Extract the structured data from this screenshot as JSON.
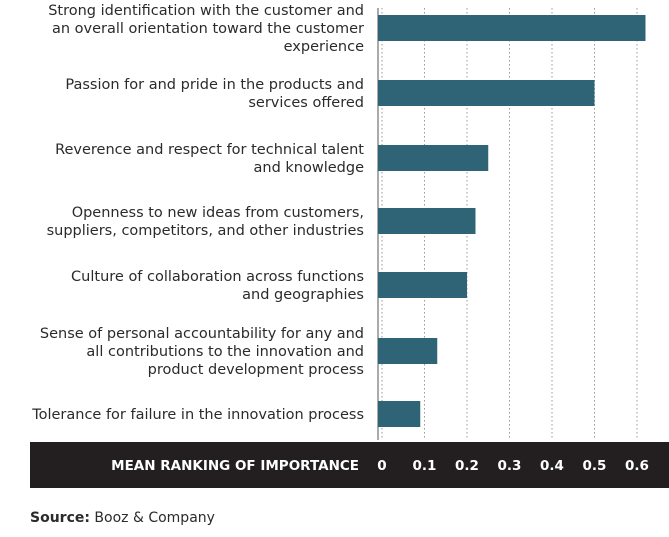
{
  "chart_data": {
    "type": "bar",
    "orientation": "horizontal",
    "categories": [
      [
        "Strong identification with the customer and",
        "an overall orientation toward the customer",
        "experience"
      ],
      [
        "Passion for and pride in the products and",
        "services offered"
      ],
      [
        "Reverence and respect for technical talent",
        "and knowledge"
      ],
      [
        "Openness to new ideas from customers,",
        "suppliers, competitors, and other industries"
      ],
      [
        "Culture of collaboration across functions",
        "and geographies"
      ],
      [
        "Sense of personal accountability for any and",
        "all contributions to the innovation and",
        "product development process"
      ],
      [
        "Tolerance for failure in the innovation process"
      ]
    ],
    "values": [
      0.62,
      0.5,
      0.25,
      0.22,
      0.2,
      0.13,
      0.09
    ],
    "xlabel": "MEAN RANKING OF IMPORTANCE",
    "xlim": [
      0,
      0.6
    ],
    "xticks": [
      "0",
      "0.1",
      "0.2",
      "0.3",
      "0.4",
      "0.5",
      "0.6"
    ],
    "grid": "vertical-dotted",
    "colors": {
      "bar": "#2f6477",
      "axis_band": "#231f20",
      "grid": "#999999"
    }
  },
  "source": {
    "label": "Source:",
    "text": "Booz & Company"
  }
}
